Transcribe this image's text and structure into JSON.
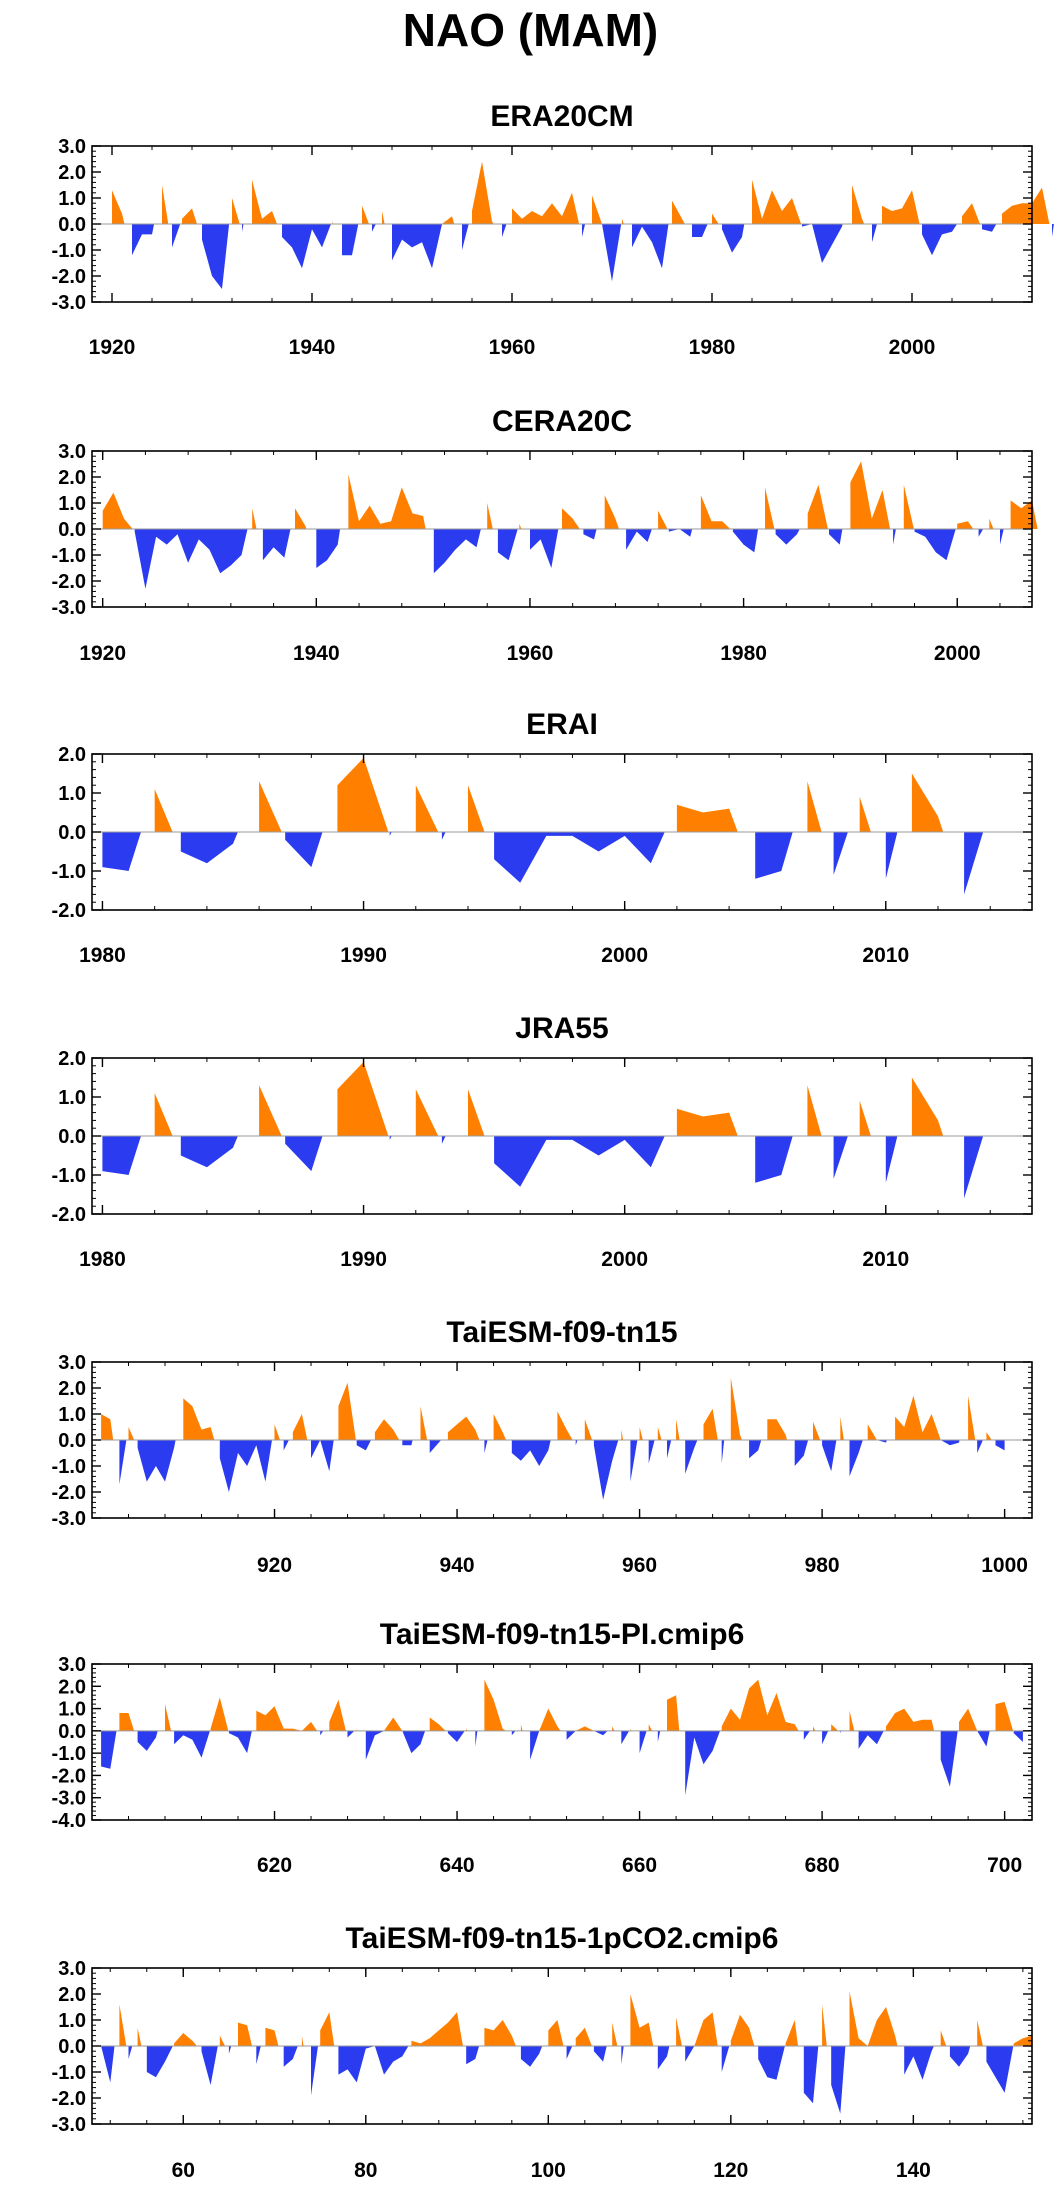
{
  "main_title": "NAO (MAM)",
  "colors": {
    "positive": "#ff8000",
    "negative": "#2b3cf0",
    "axis": "#000000"
  },
  "chart_data": [
    {
      "type": "area",
      "title": "ERA20CM",
      "xlim": [
        1918,
        2012
      ],
      "ylim": [
        -3.0,
        3.0
      ],
      "yticks": [
        "3.0",
        "2.0",
        "1.0",
        "0.0",
        "-1.0",
        "-2.0",
        "-3.0"
      ],
      "xticks": [
        1920,
        1940,
        1960,
        1980,
        2000
      ],
      "x_start": 1920,
      "values": [
        1.3,
        0.4,
        -1.2,
        -0.4,
        -0.4,
        1.5,
        -0.9,
        0.2,
        0.6,
        -0.6,
        -2.0,
        -2.5,
        1.0,
        -0.3,
        1.7,
        0.2,
        0.5,
        -0.5,
        -0.9,
        -1.7,
        -0.2,
        -0.9,
        0.1,
        -1.2,
        -1.2,
        0.7,
        -0.3,
        0.5,
        -1.4,
        -0.6,
        -0.9,
        -0.7,
        -1.7,
        0.0,
        0.3,
        -1.0,
        0.5,
        2.4,
        0.1,
        -0.5,
        0.6,
        0.2,
        0.5,
        0.3,
        0.8,
        0.3,
        1.2,
        -0.5,
        1.1,
        0.0,
        -2.2,
        0.2,
        -0.9,
        -0.1,
        -0.7,
        -1.7,
        0.9,
        0.2,
        -0.5,
        -0.5,
        0.4,
        -0.2,
        -1.1,
        -0.5,
        1.7,
        0.2,
        1.3,
        0.5,
        1.0,
        -0.1,
        0.0,
        -1.5,
        -0.8,
        -0.1,
        1.5,
        0.2,
        -0.7,
        0.7,
        0.5,
        0.6,
        1.3,
        -0.4,
        -1.2,
        -0.4,
        -0.3,
        0.3,
        0.8,
        -0.2,
        -0.3,
        0.4,
        0.7,
        0.8,
        0.8,
        1.4,
        -0.5,
        2.1,
        -0.3
      ]
    },
    {
      "type": "area",
      "title": "CERA20C",
      "xlim": [
        1919,
        2007
      ],
      "ylim": [
        -3.0,
        3.0
      ],
      "yticks": [
        "3.0",
        "2.0",
        "1.0",
        "0.0",
        "-1.0",
        "-2.0",
        "-3.0"
      ],
      "xticks": [
        1920,
        1940,
        1960,
        1980,
        2000
      ],
      "x_start": 1920,
      "values": [
        0.7,
        1.4,
        0.4,
        -0.1,
        -2.3,
        -0.3,
        -0.6,
        -0.2,
        -1.3,
        -0.4,
        -0.8,
        -1.7,
        -1.4,
        -1.0,
        0.8,
        -1.2,
        -0.7,
        -1.1,
        0.8,
        0.1,
        -1.5,
        -1.2,
        -0.6,
        2.1,
        0.3,
        0.9,
        0.2,
        0.3,
        1.6,
        0.6,
        0.5,
        -1.7,
        -1.3,
        -0.8,
        -0.4,
        -0.7,
        1.0,
        -0.9,
        -1.2,
        0.2,
        -0.8,
        -0.4,
        -1.5,
        0.8,
        0.4,
        -0.2,
        -0.4,
        1.3,
        0.4,
        -0.8,
        -0.1,
        -0.5,
        0.7,
        -0.1,
        0.0,
        -0.3,
        1.3,
        0.3,
        0.3,
        -0.1,
        -0.6,
        -0.9,
        1.6,
        -0.2,
        -0.6,
        -0.2,
        0.6,
        1.7,
        -0.2,
        -0.6,
        1.8,
        2.6,
        0.4,
        1.5,
        -0.6,
        1.7,
        -0.1,
        -0.3,
        -0.9,
        -1.2,
        0.2,
        0.3,
        -0.3,
        0.4,
        -0.6,
        1.1,
        0.8,
        1.1,
        -1.0
      ]
    },
    {
      "type": "area",
      "title": "ERAI",
      "xlim": [
        1979.6,
        2015.6
      ],
      "ylim": [
        -2.0,
        2.0
      ],
      "yticks": [
        "2.0",
        "1.0",
        "0.0",
        "-1.0",
        "-2.0"
      ],
      "xticks": [
        1980,
        1990,
        2000,
        2010
      ],
      "x_start": 1980,
      "values": [
        -0.9,
        -1.0,
        1.1,
        -0.5,
        -0.8,
        -0.3,
        1.3,
        -0.2,
        -0.9,
        1.2,
        1.9,
        -0.1,
        1.2,
        -0.2,
        1.2,
        -0.7,
        -1.3,
        -0.1,
        -0.1,
        -0.5,
        -0.1,
        -0.8,
        0.7,
        0.5,
        0.6,
        -1.2,
        -1.0,
        1.3,
        -1.1,
        0.9,
        -1.2,
        1.5,
        0.4,
        -1.6,
        0.6
      ]
    },
    {
      "type": "area",
      "title": "JRA55",
      "xlim": [
        1979.6,
        2015.6
      ],
      "ylim": [
        -2.0,
        2.0
      ],
      "yticks": [
        "2.0",
        "1.0",
        "0.0",
        "-1.0",
        "-2.0"
      ],
      "xticks": [
        1980,
        1990,
        2000,
        2010
      ],
      "x_start": 1980,
      "values": [
        -0.9,
        -1.0,
        1.1,
        -0.5,
        -0.8,
        -0.3,
        1.3,
        -0.2,
        -0.9,
        1.2,
        1.9,
        -0.1,
        1.2,
        -0.2,
        1.2,
        -0.7,
        -1.3,
        -0.1,
        -0.1,
        -0.5,
        -0.1,
        -0.8,
        0.7,
        0.5,
        0.6,
        -1.2,
        -1.0,
        1.3,
        -1.1,
        0.9,
        -1.2,
        1.5,
        0.4,
        -1.6,
        0.6
      ]
    },
    {
      "type": "area",
      "title": "TaiESM-f09-tn15",
      "xlim": [
        900,
        1003
      ],
      "ylim": [
        -3.0,
        3.0
      ],
      "yticks": [
        "3.0",
        "2.0",
        "1.0",
        "0.0",
        "-1.0",
        "-2.0",
        "-3.0"
      ],
      "xticks": [
        920,
        940,
        960,
        980,
        1000
      ],
      "x_start": 901,
      "values": [
        1.0,
        0.8,
        -1.7,
        0.5,
        -0.3,
        -1.6,
        -1.0,
        -1.6,
        -0.3,
        1.6,
        1.3,
        0.4,
        0.5,
        -0.7,
        -2.0,
        -0.5,
        -1.0,
        -0.2,
        -1.6,
        0.6,
        -0.4,
        0.3,
        1.0,
        -0.7,
        0.0,
        -1.2,
        1.3,
        2.2,
        -0.2,
        -0.4,
        0.3,
        0.8,
        0.4,
        -0.2,
        -0.2,
        1.3,
        -0.5,
        -0.1,
        0.3,
        0.6,
        0.9,
        0.4,
        -0.5,
        1.0,
        0.3,
        -0.5,
        -0.8,
        -0.4,
        -1.0,
        -0.4,
        1.1,
        0.4,
        -0.2,
        0.8,
        -0.2,
        -2.3,
        -0.8,
        0.4,
        -1.6,
        0.5,
        -0.9,
        0.5,
        -0.7,
        0.8,
        -1.3,
        -0.3,
        0.6,
        1.2,
        -0.9,
        2.4,
        0.2,
        -0.7,
        -0.4,
        0.8,
        0.8,
        0.2,
        -1.0,
        -0.6,
        0.7,
        -0.2,
        -1.2,
        0.9,
        -1.4,
        -0.5,
        0.6,
        0.0,
        -0.1,
        0.9,
        0.5,
        1.7,
        0.3,
        1.0,
        0.0,
        -0.2,
        -0.1,
        1.7,
        -0.5,
        0.3,
        -0.2,
        -0.4
      ]
    },
    {
      "type": "area",
      "title": "TaiESM-f09-tn15-PI.cmip6",
      "xlim": [
        600,
        703
      ],
      "ylim": [
        -4.0,
        3.0
      ],
      "yticks": [
        "3.0",
        "2.0",
        "1.0",
        "0.0",
        "-1.0",
        "-2.0",
        "-3.0",
        "-4.0"
      ],
      "xticks": [
        620,
        640,
        660,
        680,
        700
      ],
      "x_start": 601,
      "values": [
        -1.6,
        -1.7,
        0.8,
        0.8,
        -0.5,
        -0.9,
        -0.3,
        1.2,
        -0.6,
        -0.2,
        -0.4,
        -1.2,
        0.1,
        1.5,
        -0.1,
        -0.3,
        -1.0,
        0.9,
        0.7,
        1.1,
        0.1,
        0.1,
        0.0,
        0.4,
        -0.2,
        0.4,
        1.4,
        -0.3,
        0.1,
        -1.3,
        -0.2,
        0.0,
        0.6,
        0.0,
        -1.0,
        -0.6,
        0.6,
        0.3,
        -0.1,
        -0.5,
        0.1,
        -0.7,
        2.3,
        1.4,
        0.1,
        -0.2,
        0.3,
        -1.3,
        0.0,
        1.0,
        0.2,
        -0.4,
        0.0,
        0.2,
        0.0,
        -0.2,
        0.2,
        -0.6,
        0.1,
        -1.0,
        0.3,
        -0.5,
        1.4,
        1.6,
        -2.9,
        -0.3,
        -1.5,
        -0.9,
        0.2,
        1.0,
        0.5,
        1.9,
        2.3,
        0.7,
        1.7,
        0.4,
        0.3,
        -0.4,
        0.2,
        -0.6,
        0.3,
        -0.1,
        0.9,
        -0.8,
        -0.2,
        -0.6,
        0.2,
        0.8,
        1.0,
        0.4,
        0.5,
        0.5,
        -1.3,
        -2.5,
        0.4,
        1.0,
        0.0,
        -0.7,
        1.2,
        1.3,
        -0.1,
        -0.5
      ]
    },
    {
      "type": "area",
      "title": "TaiESM-f09-tn15-1pCO2.cmip6",
      "xlim": [
        50,
        153
      ],
      "ylim": [
        -3.0,
        3.0
      ],
      "yticks": [
        "3.0",
        "2.0",
        "1.0",
        "0.0",
        "-1.0",
        "-2.0",
        "-3.0"
      ],
      "xticks": [
        60,
        80,
        100,
        120,
        140
      ],
      "x_start": 51,
      "values": [
        0.0,
        -1.4,
        1.6,
        -0.5,
        0.7,
        -1.0,
        -1.2,
        -0.6,
        0.1,
        0.5,
        0.2,
        -0.2,
        -1.5,
        0.4,
        -0.3,
        0.9,
        0.8,
        -0.7,
        0.7,
        0.6,
        -0.8,
        -0.5,
        0.4,
        -1.9,
        0.6,
        1.3,
        -1.1,
        -0.9,
        -1.4,
        -0.1,
        0.0,
        -1.1,
        -0.6,
        -0.4,
        0.2,
        0.1,
        0.3,
        0.6,
        0.9,
        1.3,
        -0.7,
        -0.5,
        0.7,
        0.6,
        1.0,
        0.4,
        -0.5,
        -0.8,
        -0.3,
        0.6,
        1.0,
        -0.5,
        0.3,
        0.7,
        -0.2,
        -0.6,
        0.9,
        -0.7,
        2.0,
        0.7,
        0.9,
        -0.9,
        -0.4,
        1.1,
        -0.6,
        0.0,
        1.0,
        1.3,
        -1.0,
        0.2,
        1.2,
        0.7,
        -0.5,
        -1.2,
        -1.3,
        0.1,
        1.0,
        -1.8,
        -2.2,
        1.6,
        -1.5,
        -2.6,
        2.1,
        0.3,
        0.0,
        1.0,
        1.5,
        0.4,
        -1.1,
        -0.4,
        -1.3,
        -0.2,
        0.6,
        -0.4,
        -0.8,
        -0.3,
        1.0,
        -0.6,
        -1.2,
        -1.8,
        0.1,
        0.3,
        0.4
      ]
    }
  ]
}
